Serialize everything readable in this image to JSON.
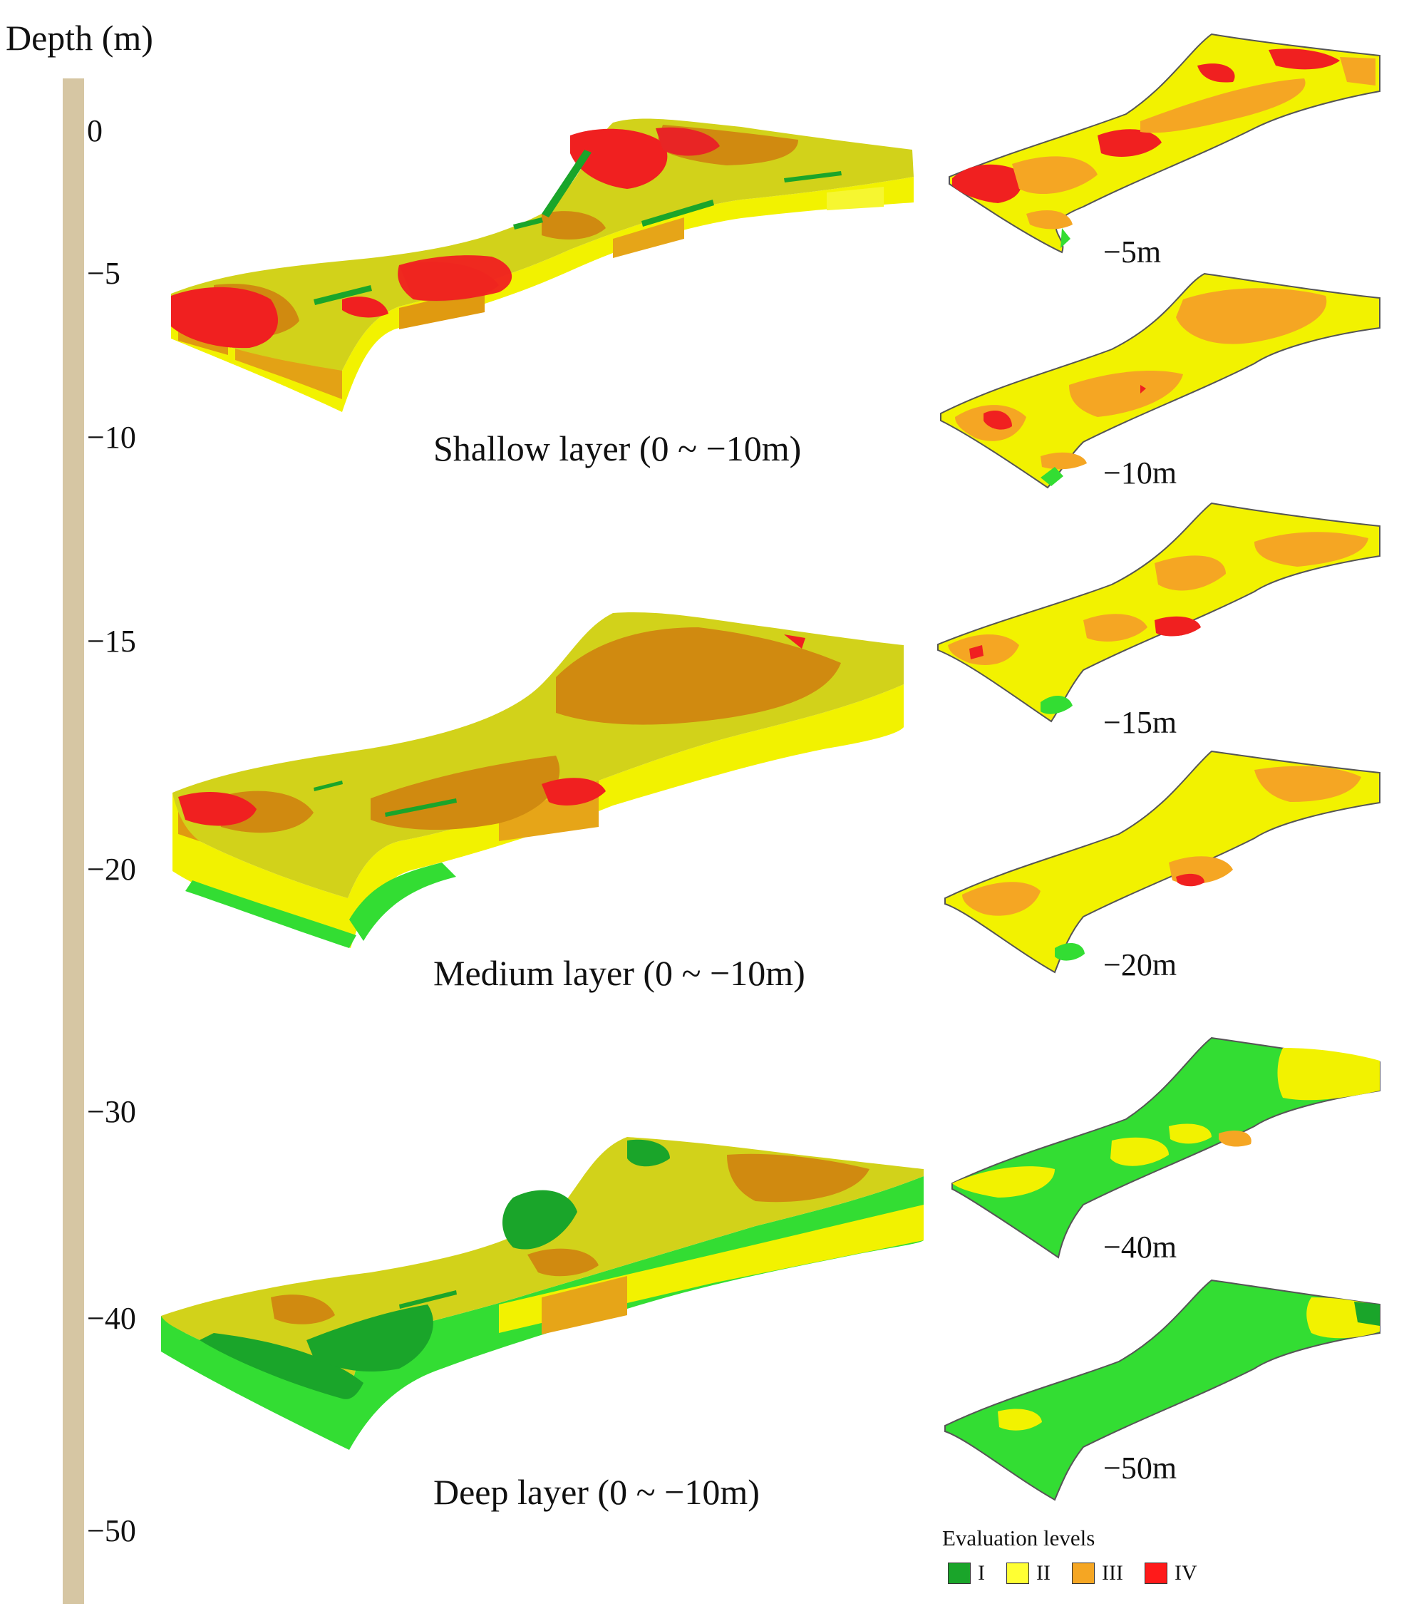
{
  "axis": {
    "title": "Depth (m)",
    "ticks": [
      {
        "label": "0",
        "value": 0
      },
      {
        "label": "−5",
        "value": -5
      },
      {
        "label": "−10",
        "value": -10
      },
      {
        "label": "−15",
        "value": -15
      },
      {
        "label": "−20",
        "value": -20
      },
      {
        "label": "−30",
        "value": -30
      },
      {
        "label": "−40",
        "value": -40
      },
      {
        "label": "−50",
        "value": -50
      }
    ]
  },
  "blocks": [
    {
      "caption": "Shallow layer (0 ~ −10m)"
    },
    {
      "caption": "Medium layer (0 ~ −10m)"
    },
    {
      "caption": "Deep layer (0 ~ −10m)"
    }
  ],
  "slices": [
    {
      "label": "−5m"
    },
    {
      "label": "−10m"
    },
    {
      "label": "−15m"
    },
    {
      "label": "−20m"
    },
    {
      "label": "−40m"
    },
    {
      "label": "−50m"
    }
  ],
  "legend": {
    "title": "Evaluation levels",
    "items": [
      {
        "label": "I",
        "color": "#1aa52a"
      },
      {
        "label": "II",
        "color": "#ffff33"
      },
      {
        "label": "III",
        "color": "#f5a623"
      },
      {
        "label": "IV",
        "color": "#ff1a1a"
      }
    ]
  },
  "colors": {
    "level_I": "#1aa52a",
    "level_I_bright": "#33dd33",
    "level_II": "#f3f500",
    "level_II_top": "#d2d21a",
    "level_III": "#e09a10",
    "level_III_top": "#d08a10",
    "level_IV": "#f02020",
    "depth_bar": "#d6c6a3"
  }
}
